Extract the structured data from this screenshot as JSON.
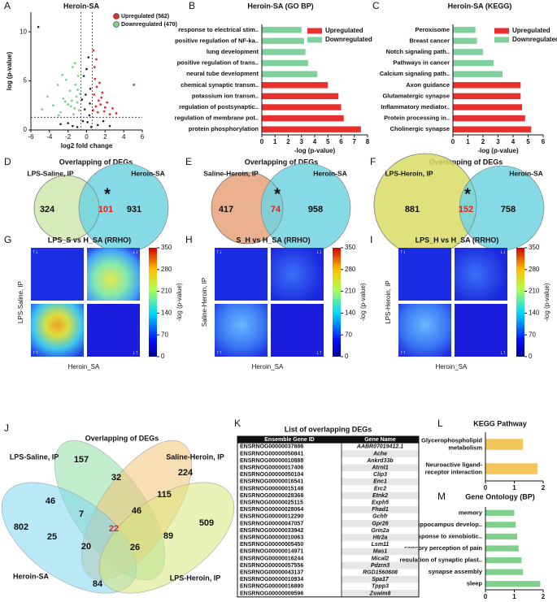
{
  "panel_labels": [
    "A",
    "B",
    "C",
    "D",
    "E",
    "F",
    "G",
    "H",
    "I",
    "J",
    "K",
    "L",
    "M"
  ],
  "volcano": {
    "type": "scatter",
    "title": "Heroin-SA",
    "x_label": "log2 fold change",
    "y_label": "log (p-value)",
    "xlim": [
      -6,
      6
    ],
    "xticks": [
      -6,
      -4,
      -2,
      0,
      2,
      4,
      6
    ],
    "ylim": [
      0,
      12
    ],
    "yticks": [
      0,
      5,
      10
    ],
    "x_cutoffs": [
      -0.6,
      0.6
    ],
    "y_cutoff": 1.3,
    "series": [
      {
        "name": "Upregulated (562)",
        "color": "#e0302c",
        "x": [
          0.7,
          0.8,
          0.9,
          1.0,
          1.1,
          1.2,
          1.3,
          1.5,
          1.7,
          1.9,
          2.2,
          2.5,
          2.8,
          3.2,
          0.85,
          1.05,
          1.4,
          1.6,
          2.0,
          0.75,
          5.1
        ],
        "y": [
          2.0,
          3.6,
          5.2,
          2.4,
          4.4,
          1.8,
          3.0,
          2.6,
          3.8,
          1.9,
          2.8,
          1.6,
          2.2,
          1.7,
          6.4,
          7.2,
          4.8,
          3.3,
          2.3,
          8.1,
          4.6
        ]
      },
      {
        "name": "Downregulated (470)",
        "color": "#7fd08a",
        "x": [
          -4.8,
          -4.2,
          -3.6,
          -3.1,
          -2.8,
          -2.5,
          -2.2,
          -2.0,
          -1.8,
          -1.6,
          -1.5,
          -1.3,
          -1.2,
          -1.1,
          -1.0,
          -0.9,
          -0.8,
          -0.7,
          -1.4,
          -2.3,
          -3.0,
          -1.7,
          -0.95,
          -1.25,
          -2.6
        ],
        "y": [
          2.1,
          3.4,
          2.5,
          4.6,
          1.8,
          3.2,
          5.1,
          2.6,
          4.0,
          3.0,
          6.4,
          2.2,
          4.6,
          3.4,
          2.8,
          5.5,
          2.0,
          3.7,
          1.6,
          2.9,
          1.5,
          2.4,
          4.1,
          6.8,
          5.6
        ]
      }
    ],
    "other_points": {
      "color": "#222222",
      "x": [
        -5.2,
        -2.8,
        -1.5,
        -0.5,
        -0.3,
        0.2,
        0.4,
        -0.2,
        0.1,
        0.3,
        -0.4,
        0.5,
        1.8,
        -2.0,
        0.0,
        -0.1,
        0.35,
        1.2,
        -1.0,
        2.5
      ],
      "y": [
        10.5,
        0.6,
        0.4,
        3.1,
        5.5,
        7.4,
        4.2,
        2.1,
        0.8,
        1.5,
        0.9,
        0.3,
        0.9,
        0.7,
        6.2,
        3.6,
        2.7,
        0.5,
        0.3,
        0.4
      ]
    }
  },
  "go_bp": {
    "type": "bar",
    "title": "Heroin-SA (GO BP)",
    "x_label": "-log (p-value)",
    "categories": [
      "response to electrical stim..",
      "positive regulation of NF-ka..",
      "lung development",
      "positive regulation of trans..",
      "neural tube development",
      "chemical synaptic transm..",
      "potassium ion transm..",
      "regulation of postsynaptic..",
      "regulation of membrane pot..",
      "protein phosphorylation"
    ],
    "xlim": [
      0,
      8
    ],
    "xticks": [
      0,
      1,
      2,
      3,
      4,
      5,
      6,
      7,
      8
    ],
    "series": [
      {
        "name": "Upregulated",
        "color": "#e8312f",
        "values": [
          null,
          null,
          null,
          null,
          null,
          5.0,
          5.8,
          6.0,
          6.2,
          7.5
        ]
      },
      {
        "name": "Downregulated",
        "color": "#7fd09a",
        "values": [
          3.0,
          3.2,
          3.3,
          3.5,
          4.2,
          null,
          null,
          null,
          null,
          null
        ]
      }
    ]
  },
  "kegg": {
    "type": "bar",
    "title": "Heroin-SA (KEGG)",
    "x_label": "-log (p-value)",
    "categories": [
      "Peroxisome",
      "Breast cancer",
      "Notch signaling path..",
      "Pathways in cancer",
      "Calcium signaling path..",
      "Axon guidance",
      "Glutamatergic synapse",
      "Inflammatory mediator..",
      "Protein processing in..",
      "Cholinergic synapse"
    ],
    "xlim": [
      0,
      6
    ],
    "xticks": [
      0,
      1,
      2,
      3,
      4,
      5,
      6
    ],
    "series": [
      {
        "name": "Upregulated",
        "color": "#e8312f",
        "values": [
          null,
          null,
          null,
          null,
          null,
          4.5,
          4.5,
          4.6,
          4.8,
          5.2
        ]
      },
      {
        "name": "Downregulated",
        "color": "#7fd09a",
        "values": [
          1.5,
          1.6,
          2.0,
          2.7,
          3.3,
          null,
          null,
          null,
          null,
          null
        ]
      }
    ]
  },
  "overlaps": [
    {
      "type": "venn",
      "title": "Overlapping of DEGs",
      "sets": [
        {
          "name": "LPS-Saline, IP",
          "color": "#cfe6ae"
        },
        {
          "name": "Heroin-SA",
          "color": "#70d4e2"
        }
      ],
      "counts": [
        324,
        101,
        931
      ],
      "mark": "*"
    },
    {
      "type": "venn",
      "title": "Overlapping of DEGs",
      "sets": [
        {
          "name": "Saline-Heroin, IP",
          "color": "#e8a37a"
        },
        {
          "name": "Heroin-SA",
          "color": "#70d4e2"
        }
      ],
      "counts": [
        417,
        74,
        958
      ],
      "mark": "*"
    },
    {
      "type": "venn",
      "title": "Overlapping of DEGs",
      "sets": [
        {
          "name": "LPS-Heroin, IP",
          "color": "#d9dc66"
        },
        {
          "name": "Heroin-SA",
          "color": "#70d4e2"
        }
      ],
      "counts": [
        881,
        152,
        758
      ],
      "mark": "*"
    }
  ],
  "rrho": [
    {
      "type": "heatmap",
      "title": "LPS_S vs H_SA (RRHO)",
      "y_label": "LPS-Saline, IP",
      "x_label": "Heroin_SA",
      "corner_labels": [
        "↑↓",
        "↓↓",
        "↑↑",
        "↓↑"
      ],
      "colorbar": {
        "label": "-log (p-value)",
        "lim": [
          0,
          350
        ],
        "ticks": [
          0,
          70,
          140,
          210,
          280,
          350
        ]
      }
    },
    {
      "type": "heatmap",
      "title": "S_H vs H_SA (RRHO)",
      "y_label": "Saline-Heroin, IP",
      "x_label": "Heroin_SA",
      "corner_labels": [
        "↑↓",
        "↓↓",
        "↑↑",
        "↓↑"
      ],
      "colorbar": {
        "label": "-log (p-value)",
        "lim": [
          0,
          350
        ],
        "ticks": [
          0,
          70,
          140,
          210,
          280,
          350
        ]
      }
    },
    {
      "type": "heatmap",
      "title": "LPS_H vs H_SA (RRHO)",
      "y_label": "LPS-Heroin, IP",
      "x_label": "Heroin_SA",
      "corner_labels": [
        "↑↓",
        "↓↓",
        "↑↑",
        "↓↑"
      ],
      "colorbar": {
        "label": "-log (p-value)",
        "lim": [
          0,
          350
        ],
        "ticks": [
          0,
          70,
          140,
          210,
          280,
          350
        ]
      }
    }
  ],
  "four_way": {
    "type": "venn",
    "title": "Overlapping of DEGs",
    "sets": [
      {
        "name": "LPS-Saline, IP",
        "color": "#8fe0a6"
      },
      {
        "name": "Saline-Heroin, IP",
        "color": "#f2c274"
      },
      {
        "name": "Heroin-SA",
        "color": "#7fd6ee"
      },
      {
        "name": "LPS-Heroin, IP",
        "color": "#d8e67a"
      }
    ],
    "counts": [
      157,
      224,
      802,
      509,
      32,
      46,
      46,
      115,
      7,
      22,
      25,
      20,
      26,
      89,
      84
    ]
  },
  "gene_table": {
    "title": "List of overlapping DEGs",
    "columns": [
      "Ensemble Gene ID",
      "Gene Name"
    ],
    "rows": [
      [
        "ENSRNOG00000037886",
        "AABR07019412.1"
      ],
      [
        "ENSRNOG00000050841",
        "Ache"
      ],
      [
        "ENSRNOG00000010888",
        "Ankrd33b"
      ],
      [
        "ENSRNOG00000017406",
        "Atrnl1"
      ],
      [
        "ENSRNOG00000050104",
        "Clip3"
      ],
      [
        "ENSRNOG00000016541",
        "Enc1"
      ],
      [
        "ENSRNOG00000015148",
        "Erc2"
      ],
      [
        "ENSRNOG00000028368",
        "Etnk2"
      ],
      [
        "ENSRNOG00000025115",
        "Exph5"
      ],
      [
        "ENSRNOG00000028064",
        "Fhad1"
      ],
      [
        "ENSRNOG00000012290",
        "Gchfr"
      ],
      [
        "ENSRNOG00000047057",
        "Gpr26"
      ],
      [
        "ENSRNOG00000033942",
        "Grin2a"
      ],
      [
        "ENSRNOG00000010063",
        "Htr2a"
      ],
      [
        "ENSRNOG00000005450",
        "Lsm11"
      ],
      [
        "ENSRNOG00000014971",
        "Mas1"
      ],
      [
        "ENSRNOG00000016244",
        "Mical2"
      ],
      [
        "ENSRNOG00000057556",
        "Pdzrn3"
      ],
      [
        "ENSRNOG00000043137",
        "RGD1560608"
      ],
      [
        "ENSRNOG00000010934",
        "Spa17"
      ],
      [
        "ENSRNOG00000016890",
        "Tppp3"
      ],
      [
        "ENSRNOG00000009596",
        "Zswim8"
      ]
    ]
  },
  "kegg_pathway": {
    "type": "bar",
    "title": "KEGG Pathway",
    "categories": [
      [
        "Glycerophospholipid",
        "metabolism"
      ],
      [
        "Neuroactive ligand-",
        "receptor interaction"
      ]
    ],
    "values": [
      1.3,
      1.8
    ],
    "color": "#f2c65a",
    "xlim": [
      0,
      2
    ],
    "xticks": [
      0,
      1,
      2
    ]
  },
  "gene_ontology": {
    "type": "bar",
    "title": "Gene Ontology (BP)",
    "categories": [
      [
        "memory"
      ],
      [
        "hippocampus develop.."
      ],
      [
        "response to xenobiotic.."
      ],
      [
        "sensory perception of pain"
      ],
      [
        "regulation of synaptic plast.."
      ],
      [
        "synapse assembly"
      ],
      [
        "sleep"
      ]
    ],
    "values": [
      1.0,
      1.05,
      1.1,
      1.15,
      1.25,
      1.3,
      1.9
    ],
    "color": "#7fd08a",
    "xlim": [
      0,
      2
    ],
    "xticks": [
      0,
      1,
      2
    ]
  }
}
